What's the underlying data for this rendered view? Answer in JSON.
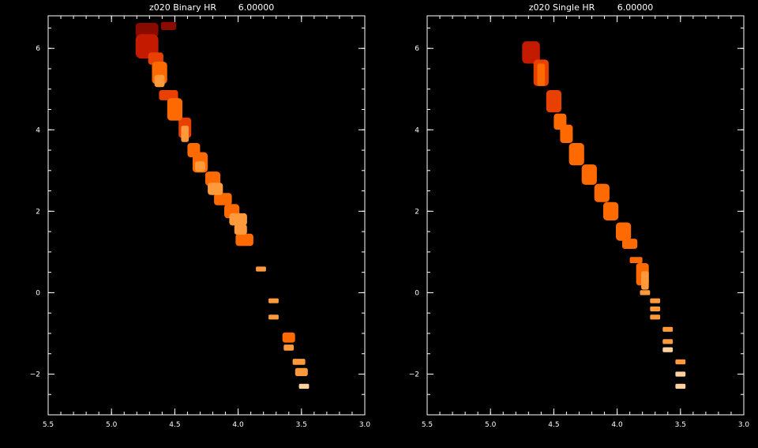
{
  "chart_data": [
    {
      "type": "heatmap",
      "title": "z020 Binary HR",
      "title_value": "6.00000",
      "xlim": [
        5.5,
        3.0
      ],
      "ylim": [
        -3,
        6.8
      ],
      "xticks": [
        5.5,
        5.0,
        4.5,
        4.0,
        3.5,
        3.0
      ],
      "xtick_labels": [
        "5.5",
        "5.0",
        "4.5",
        "4.0",
        "3.5",
        "3.0"
      ],
      "yticks": [
        -2,
        0,
        2,
        4,
        6
      ],
      "ytick_labels": [
        "−2",
        "0",
        "2",
        "4",
        "6"
      ],
      "colors": [
        "#8a0a00",
        "#c41a00",
        "#e84000",
        "#ff6a00",
        "#ff9a3c",
        "#ffd2a0"
      ],
      "cells": [
        {
          "x": 4.72,
          "y": 6.45,
          "w": 0.18,
          "h": 0.35,
          "level": 0
        },
        {
          "x": 4.55,
          "y": 6.55,
          "w": 0.12,
          "h": 0.2,
          "level": 0
        },
        {
          "x": 4.72,
          "y": 6.05,
          "w": 0.18,
          "h": 0.6,
          "level": 1
        },
        {
          "x": 4.65,
          "y": 5.75,
          "w": 0.12,
          "h": 0.3,
          "level": 2
        },
        {
          "x": 4.62,
          "y": 5.4,
          "w": 0.12,
          "h": 0.55,
          "level": 3
        },
        {
          "x": 4.62,
          "y": 5.2,
          "w": 0.08,
          "h": 0.3,
          "level": 4
        },
        {
          "x": 4.55,
          "y": 4.85,
          "w": 0.15,
          "h": 0.25,
          "level": 2
        },
        {
          "x": 4.5,
          "y": 4.5,
          "w": 0.12,
          "h": 0.55,
          "level": 3
        },
        {
          "x": 4.42,
          "y": 4.05,
          "w": 0.1,
          "h": 0.5,
          "level": 2
        },
        {
          "x": 4.42,
          "y": 3.9,
          "w": 0.06,
          "h": 0.4,
          "level": 4
        },
        {
          "x": 4.35,
          "y": 3.5,
          "w": 0.1,
          "h": 0.35,
          "level": 3
        },
        {
          "x": 4.3,
          "y": 3.2,
          "w": 0.12,
          "h": 0.5,
          "level": 3
        },
        {
          "x": 4.3,
          "y": 3.1,
          "w": 0.08,
          "h": 0.25,
          "level": 4
        },
        {
          "x": 4.2,
          "y": 2.8,
          "w": 0.12,
          "h": 0.35,
          "level": 3
        },
        {
          "x": 4.18,
          "y": 2.55,
          "w": 0.12,
          "h": 0.3,
          "level": 4
        },
        {
          "x": 4.12,
          "y": 2.3,
          "w": 0.14,
          "h": 0.3,
          "level": 3
        },
        {
          "x": 4.05,
          "y": 2.0,
          "w": 0.12,
          "h": 0.35,
          "level": 3
        },
        {
          "x": 4.0,
          "y": 1.8,
          "w": 0.14,
          "h": 0.3,
          "level": 4
        },
        {
          "x": 3.98,
          "y": 1.55,
          "w": 0.1,
          "h": 0.25,
          "level": 4
        },
        {
          "x": 3.95,
          "y": 1.3,
          "w": 0.14,
          "h": 0.3,
          "level": 3
        },
        {
          "x": 3.82,
          "y": 0.58,
          "w": 0.08,
          "h": 0.12,
          "level": 4
        },
        {
          "x": 3.72,
          "y": -0.2,
          "w": 0.08,
          "h": 0.12,
          "level": 4
        },
        {
          "x": 3.72,
          "y": -0.6,
          "w": 0.08,
          "h": 0.12,
          "level": 4
        },
        {
          "x": 3.6,
          "y": -1.1,
          "w": 0.1,
          "h": 0.25,
          "level": 3
        },
        {
          "x": 3.6,
          "y": -1.35,
          "w": 0.08,
          "h": 0.15,
          "level": 4
        },
        {
          "x": 3.52,
          "y": -1.7,
          "w": 0.1,
          "h": 0.15,
          "level": 4
        },
        {
          "x": 3.5,
          "y": -1.95,
          "w": 0.1,
          "h": 0.2,
          "level": 4
        },
        {
          "x": 3.48,
          "y": -2.3,
          "w": 0.08,
          "h": 0.12,
          "level": 5
        }
      ]
    },
    {
      "type": "heatmap",
      "title": "z020 Single HR",
      "title_value": "6.00000",
      "xlim": [
        5.5,
        3.0
      ],
      "ylim": [
        -3,
        6.8
      ],
      "xticks": [
        5.5,
        5.0,
        4.5,
        4.0,
        3.5,
        3.0
      ],
      "xtick_labels": [
        "5.5",
        "5.0",
        "4.5",
        "4.0",
        "3.5",
        "3.0"
      ],
      "yticks": [
        -2,
        0,
        2,
        4,
        6
      ],
      "ytick_labels": [
        "−2",
        "0",
        "2",
        "4",
        "6"
      ],
      "colors": [
        "#8a0a00",
        "#c41a00",
        "#e84000",
        "#ff6a00",
        "#ff9a3c",
        "#ffd2a0"
      ],
      "cells": [
        {
          "x": 4.68,
          "y": 5.9,
          "w": 0.14,
          "h": 0.55,
          "level": 1
        },
        {
          "x": 4.6,
          "y": 5.4,
          "w": 0.12,
          "h": 0.65,
          "level": 2
        },
        {
          "x": 4.6,
          "y": 5.35,
          "w": 0.06,
          "h": 0.55,
          "level": 3
        },
        {
          "x": 4.5,
          "y": 4.7,
          "w": 0.12,
          "h": 0.55,
          "level": 2
        },
        {
          "x": 4.45,
          "y": 4.2,
          "w": 0.1,
          "h": 0.4,
          "level": 3
        },
        {
          "x": 4.4,
          "y": 3.9,
          "w": 0.1,
          "h": 0.45,
          "level": 3
        },
        {
          "x": 4.32,
          "y": 3.4,
          "w": 0.12,
          "h": 0.55,
          "level": 3
        },
        {
          "x": 4.22,
          "y": 2.9,
          "w": 0.12,
          "h": 0.5,
          "level": 3
        },
        {
          "x": 4.12,
          "y": 2.45,
          "w": 0.12,
          "h": 0.45,
          "level": 3
        },
        {
          "x": 4.05,
          "y": 2.0,
          "w": 0.12,
          "h": 0.45,
          "level": 3
        },
        {
          "x": 3.95,
          "y": 1.5,
          "w": 0.12,
          "h": 0.45,
          "level": 3
        },
        {
          "x": 3.9,
          "y": 1.2,
          "w": 0.12,
          "h": 0.25,
          "level": 3
        },
        {
          "x": 3.85,
          "y": 0.8,
          "w": 0.1,
          "h": 0.15,
          "level": 3
        },
        {
          "x": 3.8,
          "y": 0.45,
          "w": 0.1,
          "h": 0.55,
          "level": 3
        },
        {
          "x": 3.78,
          "y": 0.3,
          "w": 0.06,
          "h": 0.45,
          "level": 4
        },
        {
          "x": 3.78,
          "y": 0.0,
          "w": 0.08,
          "h": 0.12,
          "level": 4
        },
        {
          "x": 3.7,
          "y": -0.2,
          "w": 0.08,
          "h": 0.12,
          "level": 4
        },
        {
          "x": 3.7,
          "y": -0.4,
          "w": 0.08,
          "h": 0.12,
          "level": 4
        },
        {
          "x": 3.7,
          "y": -0.6,
          "w": 0.08,
          "h": 0.12,
          "level": 4
        },
        {
          "x": 3.6,
          "y": -0.9,
          "w": 0.08,
          "h": 0.12,
          "level": 4
        },
        {
          "x": 3.6,
          "y": -1.2,
          "w": 0.08,
          "h": 0.12,
          "level": 4
        },
        {
          "x": 3.6,
          "y": -1.4,
          "w": 0.08,
          "h": 0.12,
          "level": 5
        },
        {
          "x": 3.5,
          "y": -1.7,
          "w": 0.08,
          "h": 0.12,
          "level": 4
        },
        {
          "x": 3.5,
          "y": -2.0,
          "w": 0.08,
          "h": 0.12,
          "level": 5
        },
        {
          "x": 3.5,
          "y": -2.3,
          "w": 0.08,
          "h": 0.12,
          "level": 5
        }
      ]
    }
  ]
}
